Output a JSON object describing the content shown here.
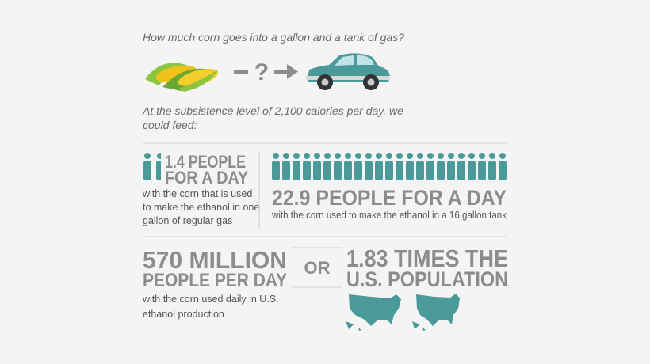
{
  "question": "How much corn goes into a gallon and a tank of gas?",
  "connector": "?",
  "intro": [
    "At the subsistence level of 2,100 calories per day, we",
    "could feed:"
  ],
  "stats": [
    {
      "headline": [
        "1.4 PEOPLE",
        "FOR A DAY"
      ],
      "caption": [
        "with the corn that is used",
        "to make the ethanol in one",
        "gallon of regular gas"
      ]
    },
    {
      "headline": [
        "22.9 PEOPLE FOR A DAY"
      ],
      "caption": [
        "with the corn used to make the ethanol in a 16 gallon tank"
      ]
    },
    {
      "headline": [
        "570 MILLION",
        "PEOPLE PER DAY"
      ],
      "caption": [
        "with the corn used daily in U.S.",
        "ethanol production"
      ]
    },
    {
      "headline": [
        "1.83 TIMES THE",
        "U.S. POPULATION"
      ]
    }
  ],
  "separator": "OR"
}
